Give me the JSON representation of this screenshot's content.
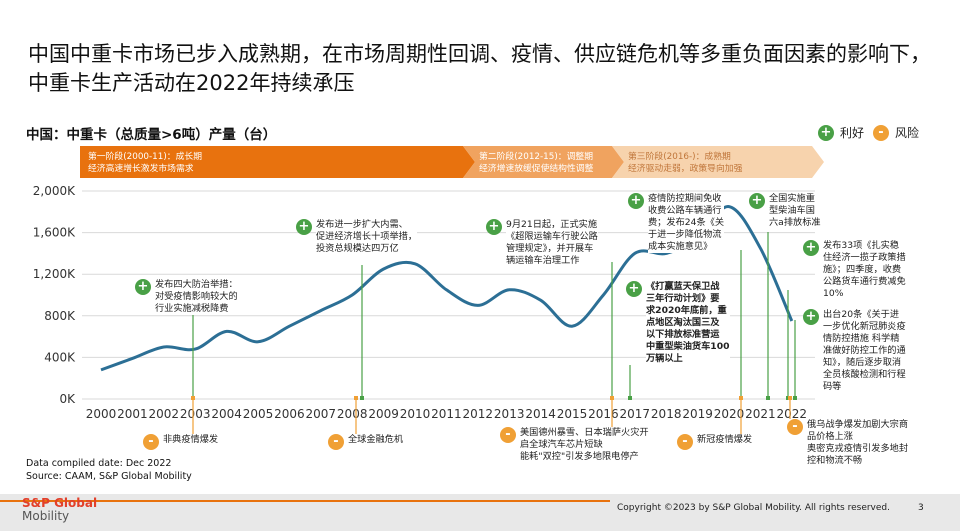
{
  "headline": "中国中重卡市场已步入成熟期，在市场周期性回调、疫情、供应链危机等多重负面因素的影响下，中重卡生产活动在2022年持续承压",
  "chart_title": "中国：中重卡（总质量>6吨）产量（台）",
  "legend": {
    "positive": "利好",
    "risk": "风险",
    "positive_symbol": "+",
    "risk_symbol": "-"
  },
  "phases": [
    {
      "label": "第一阶段(2000-11)：成长期",
      "sub": "经济高速增长激发市场需求",
      "color": "#e8720e"
    },
    {
      "label": "第二阶段(2012-15)：调整期",
      "sub": "经济增速放缓促使结构性调整",
      "color": "#f0a35f"
    },
    {
      "label": "第三阶段(2016-)：成熟期",
      "sub": "经济驱动走弱，政策导向加强",
      "color": "#f7d3ad"
    }
  ],
  "chart_data": {
    "type": "line",
    "title": "中国：中重卡（总质量>6吨）产量（台）",
    "x": [
      2000,
      2001,
      2002,
      2003,
      2004,
      2005,
      2006,
      2007,
      2008,
      2009,
      2010,
      2011,
      2012,
      2013,
      2014,
      2015,
      2016,
      2017,
      2018,
      2019,
      2020,
      2021,
      2022
    ],
    "x_tick_labels": [
      "2000",
      "2001",
      "2002",
      "2003",
      "2004",
      "2005",
      "2006",
      "2007",
      "2008",
      "2009",
      "2010",
      "2011",
      "2012",
      "2013",
      "2014",
      "2015",
      "2016",
      "2017",
      "2018",
      "2019",
      "2020",
      "2021",
      "2022"
    ],
    "series": [
      {
        "name": "",
        "values": [
          280,
          390,
          500,
          480,
          650,
          550,
          700,
          850,
          1000,
          1250,
          1300,
          1050,
          900,
          1050,
          950,
          700,
          1000,
          1400,
          1400,
          1550,
          1850,
          1450,
          750
        ]
      }
    ],
    "ylim": [
      0,
      2000
    ],
    "y_ticks": [
      0,
      400,
      800,
      1200,
      1600,
      2000
    ],
    "y_tick_labels": [
      "0K",
      "400K",
      "800K",
      "1,200K",
      "1,600K",
      "2,000K"
    ],
    "line_color": "#2c6f95",
    "grid": true
  },
  "events": [
    {
      "kind": "positive",
      "year": 2003,
      "lines": [
        "发布四大防治举措：",
        "对受疫情影响较大的",
        "行业实施减税降费"
      ]
    },
    {
      "kind": "positive",
      "year": 2008,
      "lines": [
        "发布进一步扩大内需、",
        "促进经济增长十项举措，",
        "投资总规模达四万亿"
      ]
    },
    {
      "kind": "positive",
      "year": 2016,
      "lines": [
        "9月21日起，正式实施",
        "《超限运输车行驶公路",
        "管理规定》，并开展车",
        "辆运输车治理工作"
      ]
    },
    {
      "kind": "positive",
      "year": 2017,
      "lines": [
        "《打赢蓝天保卫战",
        "三年行动计划》要",
        "求2020年底前，重",
        "点地区淘汰国三及",
        "以下排放标准营运",
        "中重型柴油货车100",
        "万辆以上"
      ]
    },
    {
      "kind": "positive",
      "year": 2020,
      "lines": [
        "疫情防控期间免收",
        "收费公路车辆通行",
        "费；发布24条《关",
        "于进一步降低物流",
        "成本实施意见》"
      ]
    },
    {
      "kind": "positive",
      "year": 2021,
      "lines": [
        "全国实施重",
        "型柴油车国",
        "六a排放标准"
      ]
    },
    {
      "kind": "positive",
      "year": 2022,
      "lines": [
        "发布33项《扎实稳",
        "住经济一揽子政策措",
        "施》；四季度，收费",
        "公路货车通行费减免",
        "10%"
      ]
    },
    {
      "kind": "positive",
      "year": 2022,
      "lines": [
        "出台20条《关于进",
        "一步优化新冠肺炎疫",
        "情防控措施 科学精",
        "准做好防控工作的通",
        "知》，随后逐步取消",
        "全员核酸检测和行程",
        "码等"
      ]
    },
    {
      "kind": "risk",
      "year": 2003,
      "lines": [
        "非典疫情爆发"
      ]
    },
    {
      "kind": "risk",
      "year": 2008,
      "lines": [
        "全球金融危机"
      ]
    },
    {
      "kind": "risk",
      "year": 2011,
      "lines": [
        "美国德州暴雪、日本瑞萨火灾开",
        "启全球汽车芯片短缺",
        "能耗\"双控\"引发多地限电停产"
      ]
    },
    {
      "kind": "risk",
      "year": 2020,
      "lines": [
        "新冠疫情爆发"
      ]
    },
    {
      "kind": "risk",
      "year": 2022,
      "lines": [
        "俄乌战争爆发加剧大宗商",
        "品价格上涨",
        "奥密克戎疫情引发多地封",
        "控和物流不畅"
      ]
    }
  ],
  "footer": {
    "compiled": "Data compiled date: Dec 2022",
    "source": "Source: CAAM, S&P Global Mobility",
    "copyright": "Copyright ©2023 by S&P Global Mobility. All rights reserved.",
    "page": "3",
    "logo_line1": "S&P Global",
    "logo_line2": "Mobility"
  }
}
